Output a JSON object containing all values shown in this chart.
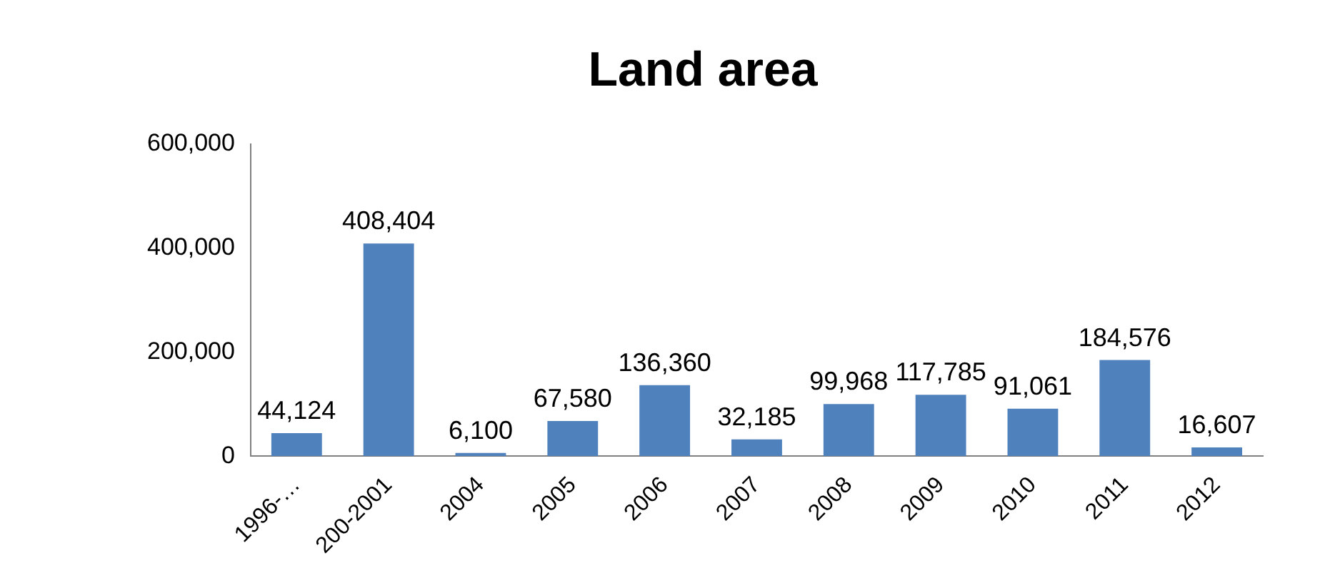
{
  "chart_data": {
    "type": "bar",
    "title": "Land area",
    "categories": [
      "1996-…",
      "200-2001",
      "2004",
      "2005",
      "2006",
      "2007",
      "2008",
      "2009",
      "2010",
      "2011",
      "2012"
    ],
    "values": [
      44124,
      408404,
      6100,
      67580,
      136360,
      32185,
      99968,
      117785,
      91061,
      184576,
      16607
    ],
    "value_labels": [
      "44,124",
      "408,404",
      "6,100",
      "67,580",
      "136,360",
      "32,185",
      "99,968",
      "117,785",
      "91,061",
      "184,576",
      "16,607"
    ],
    "color": "#4f81bd",
    "ylim": [
      0,
      600000
    ],
    "yticks": [
      {
        "value": 0,
        "label": "0"
      },
      {
        "value": 200000,
        "label": "200,000"
      },
      {
        "value": 400000,
        "label": "400,000"
      },
      {
        "value": 600000,
        "label": "600,000"
      }
    ],
    "grid": false,
    "legend": false
  }
}
